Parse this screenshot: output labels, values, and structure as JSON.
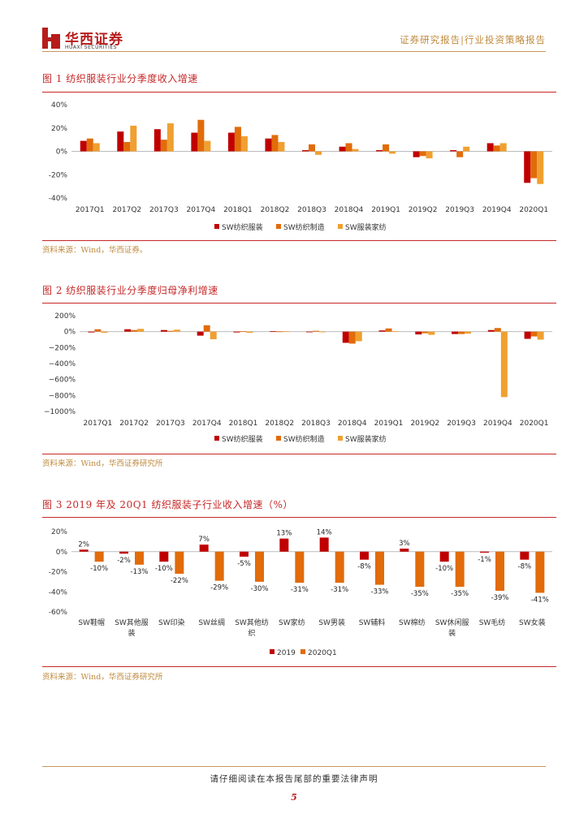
{
  "header": {
    "brand_cn": "华西证券",
    "brand_en": "HUAXI SECURITIES",
    "report_type": "证券研究报告|行业投资策略报告"
  },
  "colors": {
    "series1": "#c00000",
    "series2": "#e26b0a",
    "series3": "#f0a030",
    "accent": "#c62828"
  },
  "figures": [
    {
      "title": "图 1 纺织服装行业分季度收入增速",
      "source": "资料来源：Wind，华西证券。"
    },
    {
      "title": "图 2 纺织服装行业分季度归母净利增速",
      "source": "资料来源：Wind，华西证券研究所"
    },
    {
      "title": "图 3 2019 年及 20Q1 纺织服装子行业收入增速（%）",
      "source": "资料来源：Wind，华西证券研究所"
    }
  ],
  "chart_data": [
    {
      "type": "bar",
      "title": "图 1 纺织服装行业分季度收入增速",
      "categories": [
        "2017Q1",
        "2017Q2",
        "2017Q3",
        "2017Q4",
        "2018Q1",
        "2018Q2",
        "2018Q3",
        "2018Q4",
        "2019Q1",
        "2019Q2",
        "2019Q3",
        "2019Q4",
        "2020Q1"
      ],
      "series": [
        {
          "name": "SW纺织服装",
          "values": [
            9,
            17,
            19,
            16,
            16,
            11,
            1,
            4,
            1,
            -5,
            1,
            7,
            -27
          ]
        },
        {
          "name": "SW纺织制造",
          "values": [
            11,
            8,
            10,
            27,
            21,
            14,
            6,
            7,
            6,
            -4,
            -5,
            5,
            -23
          ]
        },
        {
          "name": "SW服装家纺",
          "values": [
            7,
            22,
            24,
            9,
            13,
            8,
            -3,
            2,
            -2,
            -6,
            4,
            7,
            -28
          ]
        }
      ],
      "yticks": [
        "40%",
        "20%",
        "0%",
        "-20%",
        "-40%"
      ],
      "ylim": [
        -40,
        40
      ],
      "legend": "bottom"
    },
    {
      "type": "bar",
      "title": "图 2 纺织服装行业分季度归母净利增速",
      "categories": [
        "2017Q1",
        "2017Q2",
        "2017Q3",
        "2017Q4",
        "2018Q1",
        "2018Q2",
        "2018Q3",
        "2018Q4",
        "2019Q1",
        "2019Q2",
        "2019Q3",
        "2019Q4",
        "2020Q1"
      ],
      "series": [
        {
          "name": "SW纺织服装",
          "values": [
            -10,
            30,
            20,
            -50,
            -10,
            5,
            -5,
            -140,
            15,
            -35,
            -30,
            20,
            -90
          ]
        },
        {
          "name": "SW纺织制造",
          "values": [
            30,
            20,
            10,
            80,
            5,
            3,
            10,
            -150,
            40,
            -20,
            -30,
            45,
            -60
          ]
        },
        {
          "name": "SW服装家纺",
          "values": [
            -15,
            35,
            25,
            -95,
            -15,
            5,
            -5,
            -120,
            5,
            -40,
            -25,
            -820,
            -100
          ]
        }
      ],
      "yticks": [
        "200%",
        "0%",
        "−200%",
        "−400%",
        "−600%",
        "−800%",
        "−1000%"
      ],
      "ylim": [
        -1000,
        200
      ],
      "legend": "bottom"
    },
    {
      "type": "bar",
      "title": "图 3 2019 年及 20Q1 纺织服装子行业收入增速（%）",
      "categories": [
        "SW鞋帽",
        "SW其他服装",
        "SW印染",
        "SW丝绸",
        "SW其他纺织",
        "SW家纺",
        "SW男装",
        "SW辅料",
        "SW棉纺",
        "SW休闲服装",
        "SW毛纺",
        "SW女装"
      ],
      "category_lines": [
        [
          "SW鞋帽"
        ],
        [
          "SW其他服",
          "装"
        ],
        [
          "SW印染"
        ],
        [
          "SW丝绸"
        ],
        [
          "SW其他纺",
          "织"
        ],
        [
          "SW家纺"
        ],
        [
          "SW男装"
        ],
        [
          "SW辅料"
        ],
        [
          "SW棉纺"
        ],
        [
          "SW休闲服",
          "装"
        ],
        [
          "SW毛纺"
        ],
        [
          "SW女装"
        ]
      ],
      "series": [
        {
          "name": "2019",
          "values": [
            2,
            -2,
            -10,
            7,
            -5,
            13,
            14,
            -8,
            3,
            -10,
            -1,
            -8
          ],
          "labels": [
            "2%",
            "-2%",
            "-10%",
            "7%",
            "-5%",
            "13%",
            "14%",
            "-8%",
            "3%",
            "-10%",
            "-1%",
            "-8%"
          ]
        },
        {
          "name": "2020Q1",
          "values": [
            -10,
            -13,
            -22,
            -29,
            -30,
            -31,
            -31,
            -33,
            -35,
            -35,
            -39,
            -41
          ],
          "labels": [
            "-10%",
            "-13%",
            "-22%",
            "-29%",
            "-30%",
            "-31%",
            "-31%",
            "-33%",
            "-35%",
            "-35%",
            "-39%",
            "-41%"
          ]
        }
      ],
      "yticks": [
        "20%",
        "0%",
        "-20%",
        "-40%",
        "-60%"
      ],
      "ylim": [
        -60,
        20
      ],
      "legend": "bottom"
    }
  ],
  "footer": {
    "disclaimer": "请仔细阅读在本报告尾部的重要法律声明",
    "page": "5"
  }
}
